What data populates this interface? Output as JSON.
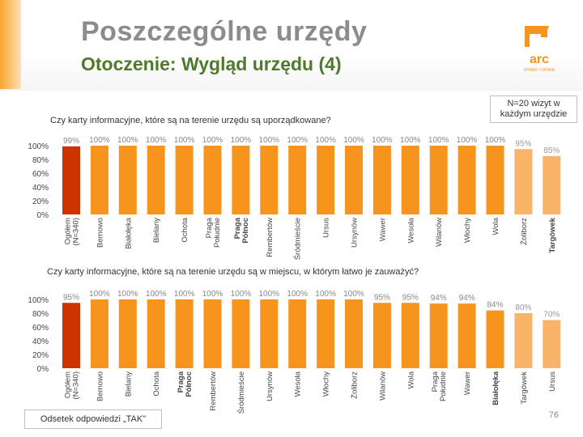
{
  "title": "Poszczególne urzędy",
  "subtitle": "Otoczenie: Wygląd urzędu (4)",
  "logo": {
    "name": "arc",
    "tagline": "RYNEK I OPINIA"
  },
  "sample_note": "N=20 wizyt w każdym urzędzie",
  "legend_label": "Odsetek odpowiedzi „TAK\"",
  "page_number": "76",
  "colors": {
    "highlight": "#cc3300",
    "bar_bright": "#f7941d",
    "bar_pale": "#f9b46a",
    "title_gray": "#8c8c8c",
    "subtitle_green": "#4f7a2b",
    "accent": "#f7a530"
  },
  "chart_data": [
    {
      "type": "bar",
      "title": "Czy karty informacyjne, które są na terenie urzędu są uporządkowane?",
      "ylim": [
        0,
        100
      ],
      "yticks": [
        "100%",
        "80%",
        "60%",
        "40%",
        "20%",
        "0%"
      ],
      "categories": [
        "Ogółem (N=340)",
        "Bemowo",
        "Białołęka",
        "Bielany",
        "Ochota",
        "Praga Południe",
        "Praga Północ",
        "Rembertów",
        "Śródmieście",
        "Ursus",
        "Ursynów",
        "Wawer",
        "Wesoła",
        "Wilanów",
        "Włochy",
        "Wola",
        "Żoliborz",
        "Targówek"
      ],
      "values": [
        99,
        100,
        100,
        100,
        100,
        100,
        100,
        100,
        100,
        100,
        100,
        100,
        100,
        100,
        100,
        100,
        95,
        85
      ],
      "value_labels": [
        "99%",
        "100%",
        "100%",
        "100%",
        "100%",
        "100%",
        "100%",
        "100%",
        "100%",
        "100%",
        "100%",
        "100%",
        "100%",
        "100%",
        "100%",
        "100%",
        "95%",
        "85%"
      ],
      "bar_styles": [
        "highlight",
        "bright",
        "bright",
        "bright",
        "bright",
        "bright",
        "bright",
        "bright",
        "bright",
        "bright",
        "bright",
        "bright",
        "bright",
        "bright",
        "bright",
        "bright",
        "pale",
        "pale"
      ],
      "bold_categories": [
        false,
        false,
        false,
        false,
        false,
        false,
        true,
        false,
        false,
        false,
        false,
        false,
        false,
        false,
        false,
        false,
        false,
        true
      ]
    },
    {
      "type": "bar",
      "title": "Czy karty informacyjne, które są na terenie urzędu są w miejscu, w którym łatwo je zauważyć?",
      "ylim": [
        0,
        100
      ],
      "yticks": [
        "100%",
        "80%",
        "60%",
        "40%",
        "20%",
        "0%"
      ],
      "categories": [
        "Ogółem (N=340)",
        "Bemowo",
        "Bielany",
        "Ochota",
        "Praga Północ",
        "Rembertów",
        "Śródmieście",
        "Ursynów",
        "Wesoła",
        "Włochy",
        "Żoliborz",
        "Wilanów",
        "Wola",
        "Praga Południe",
        "Wawer",
        "Białołęka",
        "Targówek",
        "Ursus"
      ],
      "values": [
        95,
        100,
        100,
        100,
        100,
        100,
        100,
        100,
        100,
        100,
        100,
        95,
        95,
        94,
        94,
        84,
        80,
        70
      ],
      "value_labels": [
        "95%",
        "100%",
        "100%",
        "100%",
        "100%",
        "100%",
        "100%",
        "100%",
        "100%",
        "100%",
        "100%",
        "95%",
        "95%",
        "94%",
        "94%",
        "84%",
        "80%",
        "70%"
      ],
      "bar_styles": [
        "highlight",
        "bright",
        "bright",
        "bright",
        "bright",
        "bright",
        "bright",
        "bright",
        "bright",
        "bright",
        "bright",
        "bright",
        "bright",
        "bright",
        "bright",
        "bright",
        "pale",
        "pale"
      ],
      "bold_categories": [
        false,
        false,
        false,
        false,
        true,
        false,
        false,
        false,
        false,
        false,
        false,
        false,
        false,
        false,
        false,
        true,
        false,
        false
      ]
    }
  ]
}
